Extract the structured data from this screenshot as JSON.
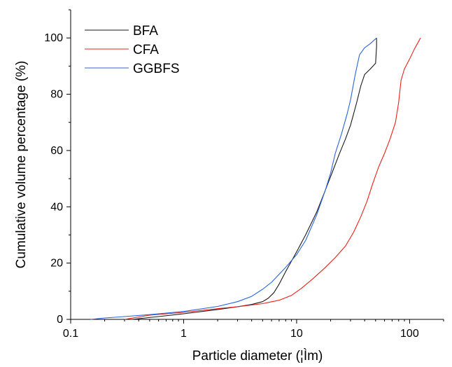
{
  "chart_data": {
    "type": "line",
    "xlabel": "Particle diameter (¦Ìm)",
    "ylabel": "Cumulative volume percentage (%)",
    "x_scale": "log",
    "xlim": [
      0.1,
      200
    ],
    "ylim": [
      0,
      110
    ],
    "x_ticks": [
      "0.1",
      "1",
      "10",
      "100"
    ],
    "y_ticks": [
      "0",
      "20",
      "40",
      "60",
      "80",
      "100"
    ],
    "grid": false,
    "legend_position": "top-left",
    "series": [
      {
        "name": "BFA",
        "color": "#1a1a1a",
        "x": [
          0.35,
          0.6,
          1,
          2,
          3,
          4,
          5,
          5.6,
          6.3,
          7,
          8,
          10,
          12,
          15,
          18,
          21,
          24,
          27,
          30,
          34,
          37,
          40,
          45,
          50,
          51,
          51
        ],
        "y": [
          0,
          1,
          2,
          3.5,
          4.5,
          5.3,
          6.3,
          7.5,
          9.5,
          12.5,
          17,
          24,
          30,
          38,
          46,
          53,
          59,
          64,
          69,
          77,
          83,
          87,
          89,
          91,
          97,
          100
        ]
      },
      {
        "name": "CFA",
        "color": "#e8221c",
        "x": [
          0.3,
          0.5,
          1,
          2,
          3,
          5,
          7,
          9,
          11,
          14,
          18,
          22,
          27,
          32,
          37,
          42,
          47,
          53,
          60,
          67,
          75,
          80,
          84,
          90,
          100,
          110,
          125
        ],
        "y": [
          0,
          1.5,
          2.5,
          3.8,
          4.5,
          5.6,
          6.8,
          8.5,
          11,
          14.5,
          18.5,
          22,
          26,
          31,
          36.5,
          42,
          48,
          54,
          59,
          64,
          70,
          77,
          85,
          89,
          92.5,
          96,
          100
        ]
      },
      {
        "name": "GGBFS",
        "color": "#2b65d9",
        "x": [
          0.15,
          0.2,
          0.3,
          0.5,
          1,
          2,
          3,
          4,
          5,
          6,
          8,
          10,
          12,
          15,
          18,
          20,
          22,
          25,
          28,
          30,
          33,
          36,
          40,
          45,
          51,
          51
        ],
        "y": [
          0,
          0.5,
          1,
          1.7,
          2.8,
          4.6,
          6.3,
          8.2,
          10.7,
          13.2,
          18.5,
          23,
          28,
          37,
          46,
          52,
          59,
          66,
          73,
          78,
          87,
          94,
          96.5,
          98,
          100,
          100
        ]
      }
    ]
  }
}
